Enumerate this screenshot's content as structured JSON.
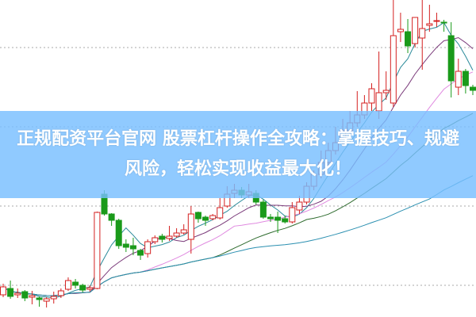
{
  "headline": "正规配资平台官网 股票杠杆操作全攻略：掌握技巧、规避风险，轻松实现收益最大化！",
  "colors": {
    "up": "#d42020",
    "down": "#1a9a1a",
    "banner": "#78beff",
    "grid": "#aaaaaa",
    "ma": [
      "#2a8a9a",
      "#7a3a7a",
      "#e08ae0",
      "#2e6b2e",
      "#2a8fb0"
    ]
  },
  "chart_data": {
    "type": "candlestick",
    "title": "",
    "grid": true,
    "ohlc_order": [
      "open",
      "close",
      "high",
      "low"
    ],
    "candles": [
      [
        2.8,
        3.8,
        4.2,
        2.5
      ],
      [
        3.6,
        2.6,
        4.6,
        2.3
      ],
      [
        2.8,
        3.0,
        3.6,
        2.4
      ],
      [
        3.2,
        2.4,
        3.4,
        2.0
      ],
      [
        2.5,
        2.7,
        3.3,
        1.6
      ],
      [
        2.4,
        2.2,
        2.6,
        1.3
      ],
      [
        2.0,
        2.3,
        2.5,
        1.2
      ],
      [
        2.3,
        2.6,
        3.2,
        1.7
      ],
      [
        2.7,
        3.3,
        3.6,
        2.4
      ],
      [
        3.5,
        4.6,
        5.0,
        3.3
      ],
      [
        4.4,
        4.0,
        4.8,
        3.6
      ],
      [
        4.0,
        3.4,
        4.2,
        3.1
      ],
      [
        3.5,
        3.7,
        4.0,
        3.2
      ],
      [
        3.6,
        13.2,
        13.3,
        3.5
      ],
      [
        15.5,
        13.0,
        16.0,
        12.8
      ],
      [
        13.0,
        12.2,
        13.1,
        11.5
      ],
      [
        12.2,
        9.0,
        12.4,
        8.6
      ],
      [
        9.2,
        8.8,
        9.8,
        8.2
      ],
      [
        9.0,
        8.6,
        10.0,
        7.8
      ],
      [
        8.4,
        7.8,
        8.6,
        7.2
      ],
      [
        8.0,
        9.5,
        9.8,
        7.5
      ],
      [
        9.5,
        10.0,
        10.3,
        9.2
      ],
      [
        10.2,
        9.8,
        10.5,
        9.4
      ],
      [
        9.9,
        10.2,
        11.5,
        9.6
      ],
      [
        10.2,
        10.6,
        11.2,
        10.0
      ],
      [
        10.6,
        11.0,
        11.7,
        10.4
      ],
      [
        9.8,
        13.0,
        14.0,
        8.0
      ],
      [
        13.2,
        12.4,
        13.3,
        11.9
      ],
      [
        12.6,
        12.2,
        12.8,
        11.5
      ],
      [
        12.4,
        12.8,
        13.0,
        12.2
      ],
      [
        12.5,
        13.8,
        15.0,
        12.3
      ],
      [
        14.0,
        15.5,
        16.5,
        13.8
      ],
      [
        15.6,
        16.0,
        16.8,
        15.0
      ],
      [
        16.0,
        15.4,
        16.4,
        15.0
      ],
      [
        15.4,
        15.8,
        16.8,
        15.0
      ],
      [
        15.6,
        14.5,
        16.0,
        14.2
      ],
      [
        14.5,
        12.6,
        14.8,
        12.4
      ],
      [
        12.6,
        12.4,
        13.0,
        12.0
      ],
      [
        12.6,
        12.2,
        13.3,
        10.6
      ],
      [
        12.4,
        12.0,
        12.8,
        11.8
      ],
      [
        12.0,
        13.8,
        14.5,
        11.8
      ],
      [
        13.5,
        14.5,
        15.3,
        13.0
      ],
      [
        14.5,
        16.5,
        17.0,
        14.2
      ],
      [
        16.5,
        18.0,
        18.5,
        16.0
      ],
      [
        18.0,
        19.5,
        21.0,
        17.5
      ],
      [
        19.5,
        21.0,
        22.0,
        19.0
      ],
      [
        21.0,
        22.0,
        24.0,
        20.5
      ],
      [
        22.0,
        23.5,
        25.0,
        21.5
      ],
      [
        23.5,
        24.5,
        26.0,
        23.0
      ],
      [
        24.5,
        25.5,
        28.5,
        24.0
      ],
      [
        25.5,
        27.0,
        28.0,
        25.0
      ],
      [
        27.0,
        28.8,
        29.5,
        26.0
      ],
      [
        26.0,
        28.3,
        33.5,
        25.0
      ],
      [
        28.3,
        28.6,
        31.0,
        27.4
      ],
      [
        27.0,
        35.5,
        40.0,
        26.5
      ],
      [
        36.0,
        36.3,
        38.4,
        34.7
      ],
      [
        36.0,
        34.2,
        37.6,
        33.3
      ],
      [
        34.5,
        37.8,
        37.8,
        34.0
      ],
      [
        35.2,
        36.4,
        40.0,
        31.2
      ],
      [
        36.8,
        37.0,
        39.4,
        36.0
      ],
      [
        37.3,
        37.4,
        38.4,
        36.6
      ],
      [
        37.2,
        37.1,
        37.5,
        36.0
      ],
      [
        35.5,
        29.8,
        37.2,
        27.7
      ],
      [
        29.0,
        31.0,
        32.6,
        28.0
      ],
      [
        31.0,
        29.2,
        31.3,
        28.2
      ],
      [
        29.0,
        28.6,
        29.3,
        28.0
      ]
    ],
    "moving_averages": [
      5,
      10,
      20,
      30,
      60
    ],
    "ylim": [
      0,
      40
    ]
  }
}
